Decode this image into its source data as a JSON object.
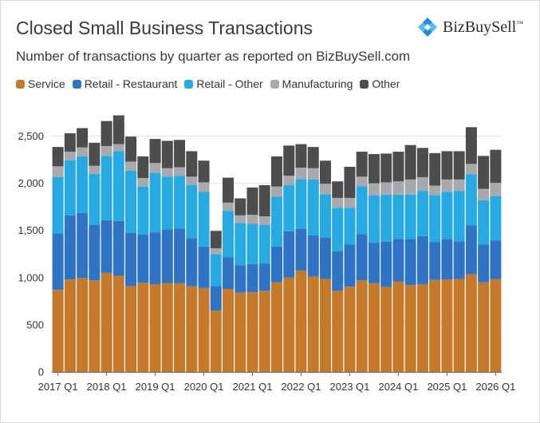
{
  "header": {
    "title": "Closed Small Business Transactions",
    "subtitle": "Number of transactions by quarter as reported on BizBuySell.com",
    "brand": "BizBuySell",
    "brand_mark": "™",
    "brand_icon": "bizbuysell-logo-icon"
  },
  "chart_data": {
    "type": "bar",
    "stacked": true,
    "title": "Closed Small Business Transactions",
    "subtitle": "Number of transactions by quarter as reported on BizBuySell.com",
    "xlabel": "",
    "ylabel": "",
    "ylim": [
      0,
      2750
    ],
    "yticks": [
      0,
      500,
      1000,
      1500,
      2000,
      2500
    ],
    "ytick_labels": [
      "0",
      "500",
      "1,000",
      "1,500",
      "2,000",
      "2,500"
    ],
    "grid": "horizontal",
    "legend_position": "top-left",
    "categories": [
      "2017 Q1",
      "2017 Q2",
      "2017 Q3",
      "2017 Q4",
      "2018 Q1",
      "2018 Q2",
      "2018 Q3",
      "2018 Q4",
      "2019 Q1",
      "2019 Q2",
      "2019 Q3",
      "2019 Q4",
      "2020 Q1",
      "2020 Q2",
      "2020 Q3",
      "2020 Q4",
      "2021 Q1",
      "2021 Q2",
      "2021 Q3",
      "2021 Q4",
      "2022 Q1",
      "2022 Q2",
      "2022 Q3",
      "2022 Q4",
      "2023 Q1",
      "2023 Q2",
      "2023 Q3",
      "2023 Q4",
      "2024 Q1",
      "2024 Q2",
      "2024 Q3",
      "2024 Q4",
      "2025 Q1",
      "2025 Q2",
      "2025 Q3",
      "2025 Q4",
      "2026 Q1"
    ],
    "xtick_labels": [
      "2017 Q1",
      "2018 Q1",
      "2019 Q1",
      "2020 Q1",
      "2021 Q1",
      "2022 Q1",
      "2023 Q1",
      "2024 Q1",
      "2025 Q1",
      "2026 Q1"
    ],
    "series": [
      {
        "name": "Service",
        "color": "#c57a2b",
        "values": [
          870,
          980,
          995,
          970,
          1050,
          1020,
          910,
          945,
          930,
          940,
          940,
          910,
          890,
          650,
          880,
          840,
          845,
          860,
          950,
          1000,
          1075,
          1010,
          985,
          860,
          905,
          970,
          940,
          900,
          960,
          920,
          930,
          975,
          980,
          985,
          1035,
          950,
          985
        ]
      },
      {
        "name": "Retail - Restaurant",
        "color": "#2f73c4",
        "values": [
          600,
          680,
          690,
          590,
          560,
          580,
          565,
          510,
          550,
          570,
          580,
          510,
          440,
          260,
          335,
          290,
          300,
          290,
          380,
          490,
          440,
          440,
          440,
          420,
          445,
          490,
          430,
          480,
          450,
          490,
          510,
          400,
          430,
          400,
          520,
          400,
          410
        ]
      },
      {
        "name": "Retail - Other",
        "color": "#27a9e1",
        "values": [
          595,
          585,
          600,
          540,
          680,
          740,
          660,
          510,
          630,
          560,
          560,
          560,
          580,
          340,
          490,
          450,
          425,
          410,
          530,
          490,
          530,
          590,
          460,
          460,
          390,
          510,
          500,
          500,
          470,
          470,
          480,
          500,
          500,
          535,
          540,
          470,
          470
        ]
      },
      {
        "name": "Manufacturing",
        "color": "#a7a9ac",
        "values": [
          115,
          90,
          95,
          85,
          105,
          75,
          95,
          90,
          105,
          90,
          90,
          90,
          100,
          60,
          90,
          80,
          95,
          90,
          105,
          100,
          120,
          120,
          110,
          105,
          105,
          100,
          130,
          130,
          140,
          160,
          145,
          100,
          130,
          120,
          110,
          120,
          140
        ]
      },
      {
        "name": "Other",
        "color": "#4d4d4f",
        "values": [
          205,
          195,
          205,
          245,
          265,
          305,
          265,
          230,
          255,
          290,
          290,
          270,
          230,
          185,
          265,
          180,
          290,
          330,
          320,
          320,
          250,
          225,
          245,
          175,
          330,
          265,
          310,
          305,
          315,
          365,
          310,
          345,
          300,
          300,
          390,
          350,
          350
        ]
      }
    ]
  }
}
